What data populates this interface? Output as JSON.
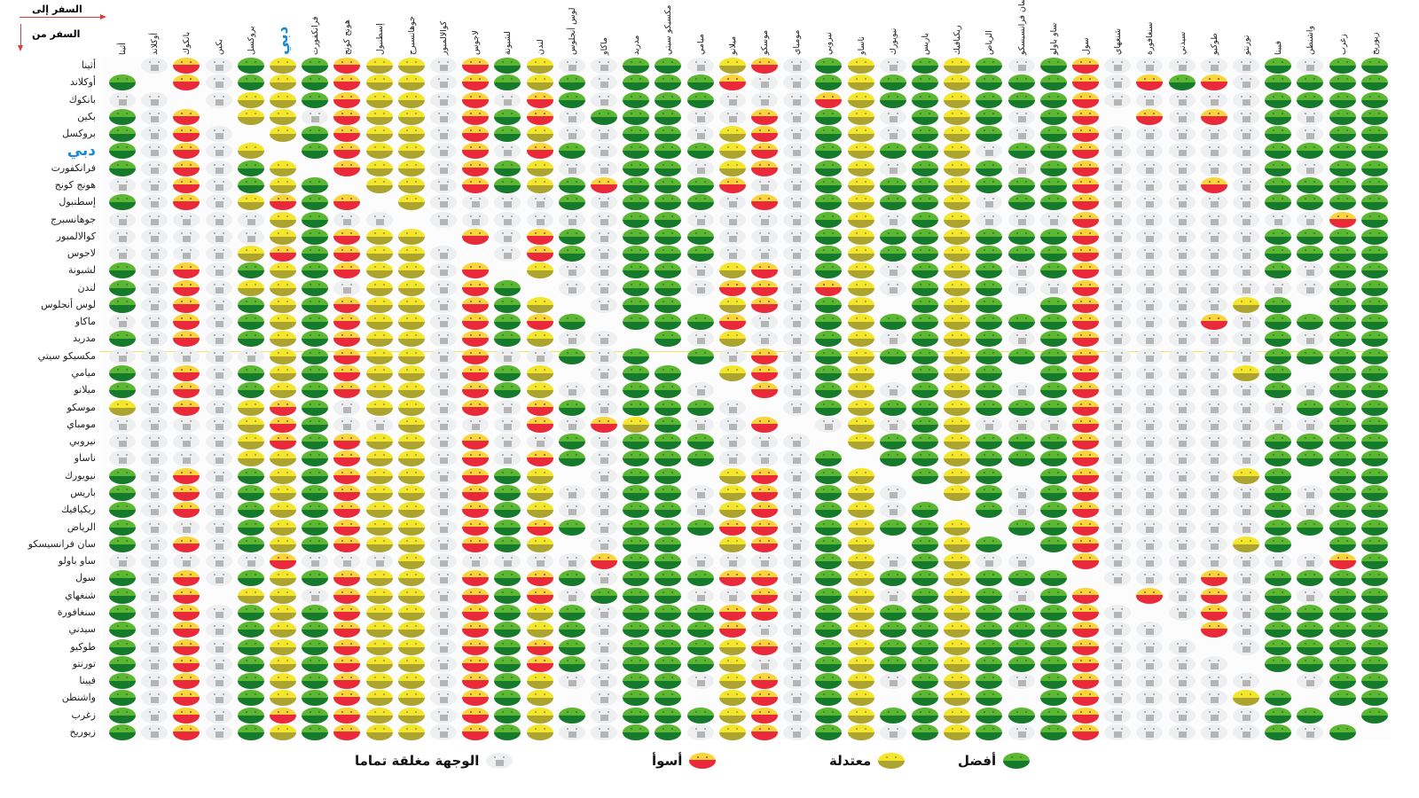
{
  "axis": {
    "to_label": "السفر إلى",
    "from_label": "السفر من"
  },
  "chart_data": {
    "type": "heatmap",
    "title": "",
    "xlabel": "السفر إلى",
    "ylabel": "السفر من",
    "highlight_city": "دبي",
    "columns": [
      "أثينا",
      "أوكلاند",
      "بانكوك",
      "بكين",
      "بروكسل",
      "دبي",
      "فرانكفورت",
      "هونج كونج",
      "إسطنبول",
      "جوهانسبرج",
      "كوالالمبور",
      "لاجوس",
      "لشبونة",
      "لندن",
      "لوس أنجلوس",
      "ماكاو",
      "مدريد",
      "مكسيكو سيتي",
      "ميامي",
      "ميلانو",
      "موسكو",
      "مومباي",
      "نيروبي",
      "ناساو",
      "نيويورك",
      "باريس",
      "ريكيافيك",
      "الرياض",
      "سان فرانسيسكو",
      "ساو باولو",
      "سول",
      "شنغهاي",
      "سنغافورة",
      "سيدني",
      "طوكيو",
      "تورنتو",
      "فيينا",
      "واشنطن",
      "زغرب",
      "زيوريخ"
    ],
    "rows": [
      "أثينا",
      "أوكلاند",
      "بانكوك",
      "بكين",
      "بروكسل",
      "دبي",
      "فرانكفورت",
      "هونج كونج",
      "إسطنبول",
      "جوهانسبرج",
      "كوالالمبور",
      "لاجوس",
      "لشبونة",
      "لندن",
      "لوس أنجلوس",
      "ماكاو",
      "مدريد",
      "مكسيكو سيتي",
      "ميامي",
      "ميلانو",
      "موسكو",
      "مومباي",
      "نيروبي",
      "ناساو",
      "نيويورك",
      "باريس",
      "ريكيافيك",
      "الرياض",
      "سان فرانسيسكو",
      "ساو باولو",
      "سول",
      "شنغهاي",
      "سنغافورة",
      "سيدني",
      "طوكيو",
      "تورنتو",
      "فيينا",
      "واشنطن",
      "زغرب",
      "زيوريخ"
    ],
    "codes": {
      "G": "best",
      "Y": "moderate",
      "R": "worse",
      "C": "closed",
      "-": "none"
    },
    "matrix": [
      "-CRCGYGRYYCRGYCCGGCYRCGYCGYGCGRCCCCCGCGG",
      "G-RCGYGRYYCRGYGCGGGRCCGYGGYGGGRCRGRCGGGG",
      "CC-CYYGRYYCRCRGCGGGCCCRYGGYGGGRCCCCCGGGG",
      "GCR-YYCRYYCRGRCGGGCCRCGYCGYGCGR-RCRCGCGG",
      "GCRC-YGRYYCRGYCCGGCYRCGYCGYGCGRCCCCCGCGG",
      "GCRCY-GRYYCRCRGCGGGYRCGYGGYCGGRCCCCCGGGG",
      "GCRCGY-RYYCRGYCCGGCYRCGYCGYGCGRCCCCCGCGG",
      "CCRCGYG-YYCRGYGRGGGRCCGYGGYGGGRCCCRCGGGG",
      "GCRCYRGR-YCCCCGCGGGCRCGYGGYCGGRCCCCCGGGG",
      "CCCCCYGCC-CCCCCCGGCCCCGYCGYCCCRCCCCCCCRG",
      "CCCCCYGRYY-RCRGCGGGCCCGYGGYGGGRCCCCCGGGG",
      "CCCCYRGRYYC-CRGCGGGCCCGYGGYGGGRCCCCCGGGG",
      "GCRCGYGRYYCR-YCCGGCYRCGYCGYGCGRCCCCCGCGG",
      "GCRCYYGCYYCRG-CCGGCRRCRYCGYGCCRCCCCCCCGG",
      "GCRCGYGRYYCRGY-CGG-YRCGY-GYG-GRCCCCYG-GG",
      "CCRCGYGRYYCRGRG-GGGRCCGYGGYGGGRCCCRCGGGG",
      "GCRCGYGRYYCRGYCC-GCYCCGYCGYGCGRCCCCCGCGG",
      "CCCCCYGRYYCRCCGCG-GCRCGYGGYGGGRCCCCCGGGG",
      "GCRCGYGRYYCRGY-CGG-YRCGY-GYG-GRCCCCYG-GG",
      "GCRCGYGRYYCRGYCCGGC-RCGYCGYGCGRCCCCCGCGG",
      "YCRCYRGCYYCRCRGCGGGC-CGYGGYGGGRCCCCCCGGG",
      "CCCCYRGCCYCCCRCRYGCCR-CYCGYCCCRCCCCCCCGG",
      "CCCCYRGRYYCRCCGCGGGCCC-YGGYGGGRCCCCCGGGG",
      "CCCCYYGRYYCRCRGCGGGCCCG-GGYGGGRCCCCCGGGG",
      "GCRCGYGRYYCRGY-CGG-YRCGY-GYG-GRCCCCYG-GG",
      "GCRCGYGRYYCRGYCCGGCYRCGYC-YGCGRCCCCCGCGG",
      "GCRCGYGRYYCRGYCCGGCYRCGYCG-GCGRCCCCCGCGG",
      "GCCCGYGRYYCRGRGCGGGRRCGYGGY-GGRCCCCCGGGG",
      "GCRCGYGRYYCRGY-CGG-YRCGY-GYG-GRCCCCYG-GG",
      "CCCCCRCCCYCCCCCRGGCCCCGYCGYCC-RCCCCCCCRG",
      "GCRCGYGRYYCRGRGCGGGRRCGYGGYGGG-CCCRCGGGG",
      "GCR-YYCRYYCRGRCGGGCCRCGYCGYGCGR-RCRCGCGG",
      "GCRCGYGRYYCRGYGCGGGRRCGYGGYGGGRC-CRCGGGG",
      "GCRCGYGRYYCRGYGCGGGRCCGYGGYGGGRCC-RCGGGG",
      "GCRCGYGRYYCRGRGCGGGYRCGYGGYGGGRCCC-CGGGG",
      "GCRCGYGRYYCRGRGCGGGYCCGYGGYGGGRCCCC-GGGG",
      "GCRCGYGRYYCRGYCCGGCYRCGYCGYGCGRCCCCC-CGG",
      "GCRCGYGRYYCRGY-CGG-YRCGY-GYG-GRCCCCYG-GG",
      "GCRCGRGRYYCRGYGCGGGYRCGYGGYGGGRCCCCCGG-G",
      "GCRCGYGRYYCRGYCCGGCYRCGYCGYGCGRCCCCCGCG-"
    ],
    "legend": [
      {
        "code": "G",
        "label": "أفضل"
      },
      {
        "code": "Y",
        "label": "معتدلة"
      },
      {
        "code": "R",
        "label": "أسوأ"
      },
      {
        "code": "C",
        "label": "الوجهة مغلقة تماما"
      }
    ],
    "legend_placement": "bottom"
  },
  "colors": {
    "best": "#167a2c",
    "moderate": "#f3e62c",
    "worse": "#ea2a3a",
    "closed": "#eeeff0",
    "highlight": "#1a8ad4",
    "arrow": "#e53935"
  }
}
